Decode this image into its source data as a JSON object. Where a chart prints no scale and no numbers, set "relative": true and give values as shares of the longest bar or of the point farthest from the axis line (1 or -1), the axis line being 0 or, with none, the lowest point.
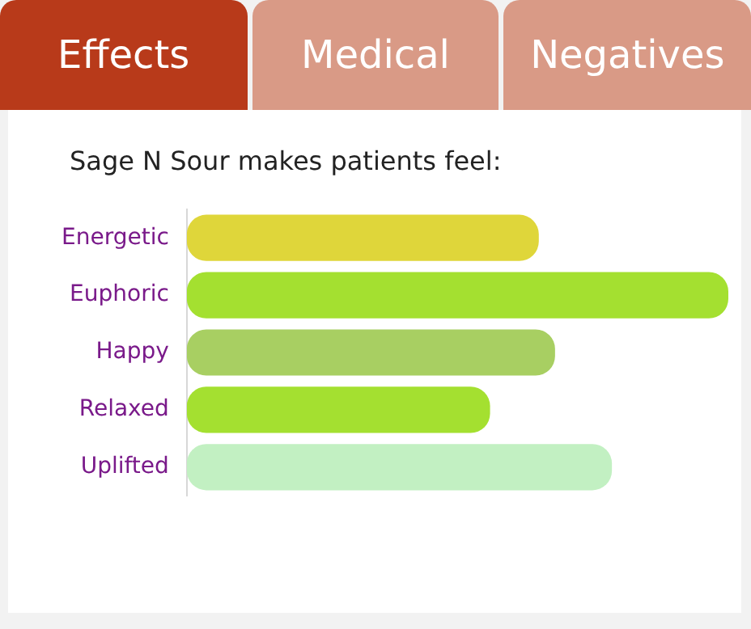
{
  "chart_data": {
    "type": "bar",
    "orientation": "horizontal",
    "relative": true,
    "title": "Sage N Sour makes patients feel:",
    "annotations": [
      "Effects",
      "Medical",
      "Negatives"
    ],
    "categories": [
      "Energetic",
      "Euphoric",
      "Happy",
      "Relaxed",
      "Uplifted"
    ],
    "values": [
      0.65,
      1,
      0.68,
      0.56,
      0.785
    ],
    "colors": [
      "#dfd63a",
      "#a4e030",
      "#a8cf62",
      "#a4e030",
      "#c2f0c2"
    ],
    "legend": false
  }
}
